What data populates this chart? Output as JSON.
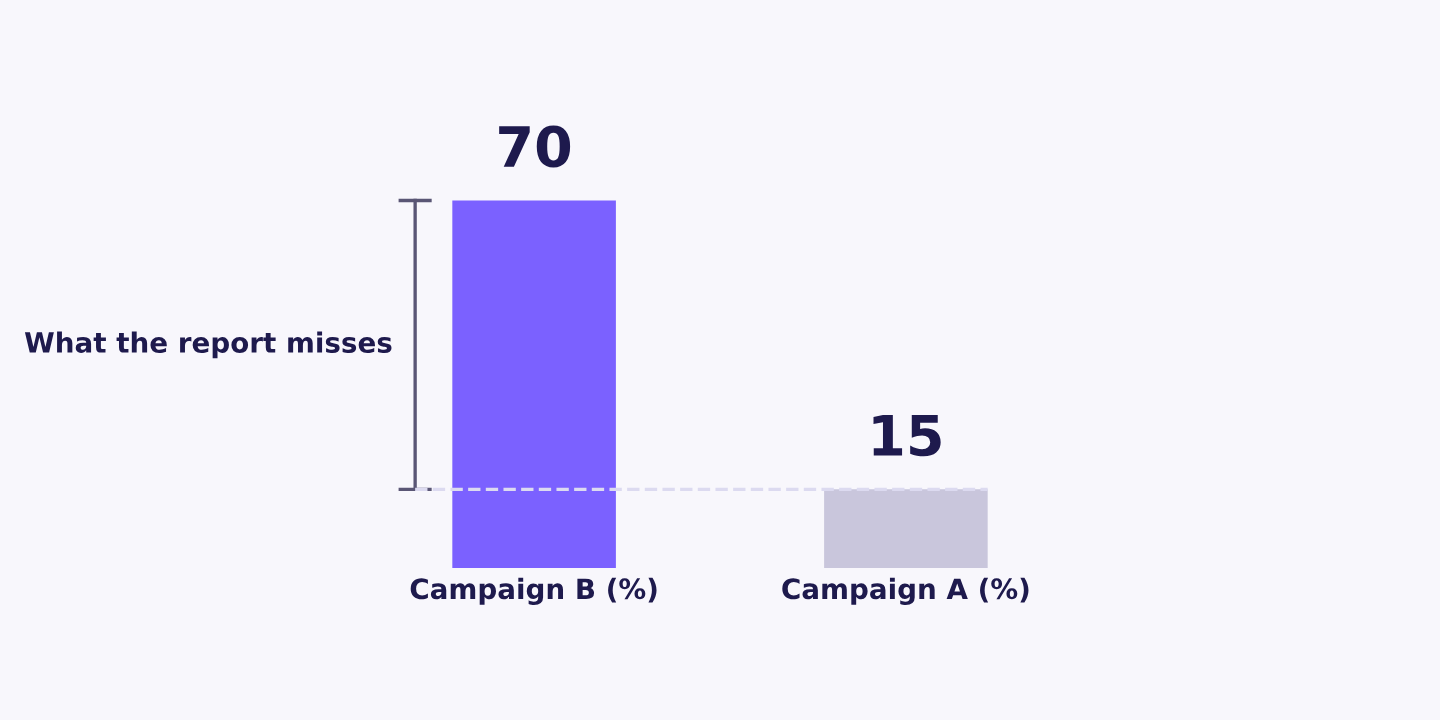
{
  "chart_data": {
    "type": "bar",
    "categories": [
      "Campaign B (%)",
      "Campaign A (%)"
    ],
    "values": [
      70,
      15
    ],
    "colors": [
      "#7b61ff",
      "#c9c6dc"
    ],
    "data_labels": true,
    "grid": false,
    "legend": false,
    "tick_labels": "x",
    "ref_lines": [
      {
        "axis": "y",
        "value": 15,
        "color": "#dcdaf0",
        "line_style": "dashed"
      }
    ],
    "annotations": [
      "What the report misses"
    ]
  }
}
